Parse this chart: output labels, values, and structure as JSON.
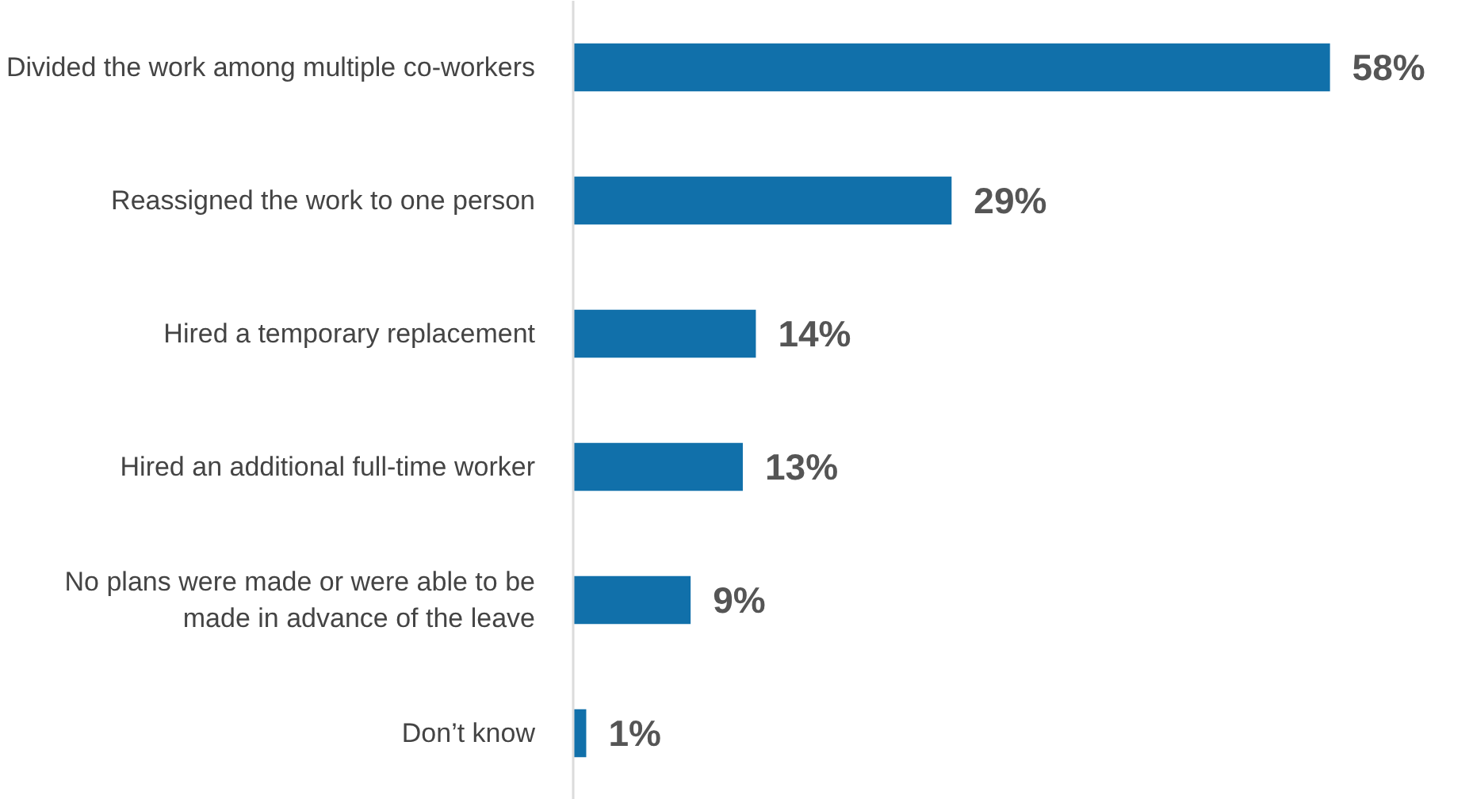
{
  "chart_data": {
    "type": "bar",
    "orientation": "horizontal",
    "categories": [
      "Divided the work among multiple co-workers",
      "Reassigned the work to one person",
      "Hired a temporary replacement",
      "Hired an additional full-time worker",
      "No plans were made or were able to be\nmade in advance of the leave",
      "Don’t know"
    ],
    "values": [
      58,
      29,
      14,
      13,
      9,
      1
    ],
    "color": "#1170aa",
    "value_labels": [
      "58%",
      "29%",
      "14%",
      "13%",
      "9%",
      "1%"
    ],
    "tick_labels": "y"
  }
}
